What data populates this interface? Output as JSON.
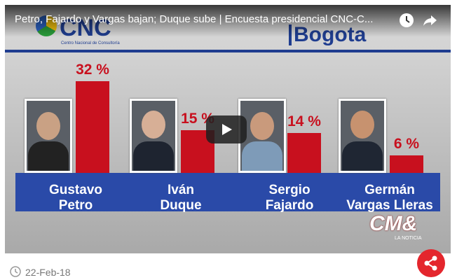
{
  "video": {
    "title": "Petro, Fajardo y Vargas bajan; Duque sube | Encuesta presidencial CNC-C...",
    "logo": "CNC",
    "logo_sub": "Centro Nacional de Consultoría",
    "region": "Bogota",
    "brand": "CM&",
    "brand_sub": "LA NOTICIA"
  },
  "chart_data": {
    "type": "bar",
    "categories": [
      "Gustavo\nPetro",
      "Iván\nDuque",
      "Sergio\nFajardo",
      "Germán\nVargas Lleras"
    ],
    "values": [
      32,
      15,
      14,
      6
    ],
    "value_labels": [
      "32 %",
      "15 %",
      "14 %",
      "6 %"
    ],
    "color": "#c8101e"
  },
  "date": "22-Feb-18"
}
